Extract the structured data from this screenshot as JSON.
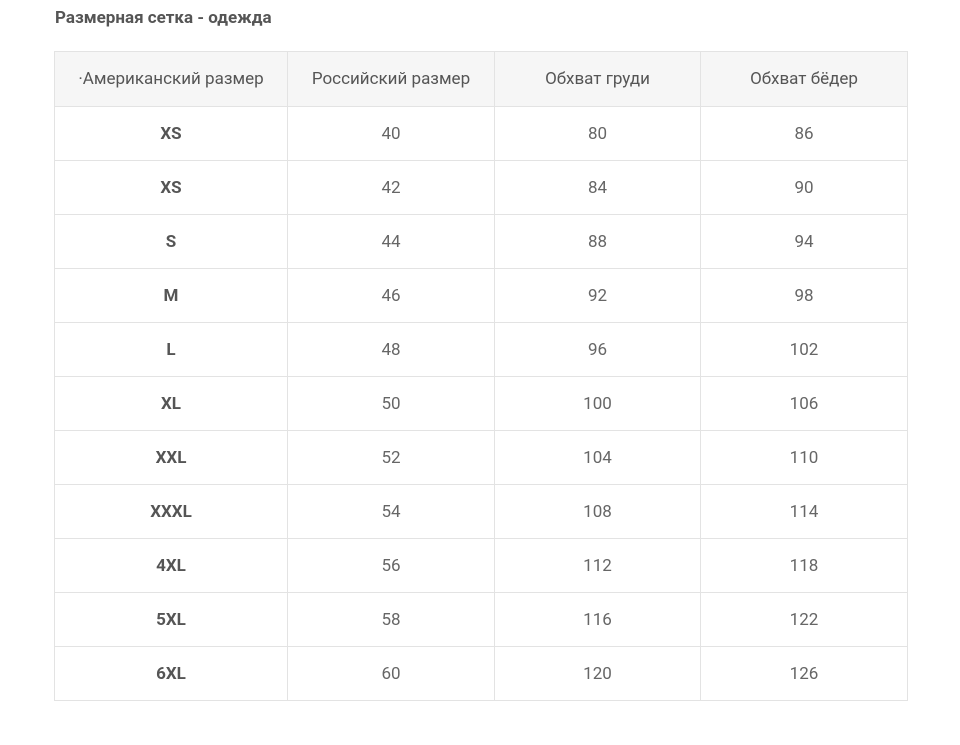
{
  "title": "Размерная сетка - одежда",
  "table": {
    "header": [
      "·Американский размер",
      "Российский размер",
      "Обхват груди",
      "Обхват бёдер"
    ],
    "rows": [
      [
        "XS",
        40,
        80,
        86
      ],
      [
        "XS",
        42,
        84,
        90
      ],
      [
        "S",
        44,
        88,
        94
      ],
      [
        "M",
        46,
        92,
        98
      ],
      [
        "L",
        48,
        96,
        102
      ],
      [
        "XL",
        50,
        100,
        106
      ],
      [
        "XXL",
        52,
        104,
        110
      ],
      [
        "XXXL",
        54,
        108,
        114
      ],
      [
        "4XL",
        56,
        112,
        118
      ],
      [
        "5XL",
        58,
        116,
        122
      ],
      [
        "6XL",
        60,
        120,
        126
      ]
    ]
  }
}
